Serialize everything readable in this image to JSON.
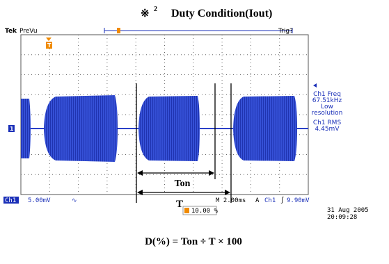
{
  "header": {
    "mark": "※",
    "superscript": "2",
    "title": "Duty Condition(Iout)"
  },
  "scope": {
    "top_bar": {
      "brand": "Tek",
      "mode": "PreVu",
      "trigger_status": "Trig?"
    },
    "side_readout": [
      "Ch1 Freq",
      "67.51kHz",
      "Low",
      "resolution",
      "Ch1 RMS",
      "4.45mV"
    ],
    "bottom_bar": {
      "channel": "Ch1",
      "volts_per_div": "5.00mV",
      "coupling": "∿",
      "timebase": "M 2.00ms",
      "trigger_mode": "A",
      "trigger_channel": "Ch1",
      "trigger_slope": "∫",
      "trigger_level": "9.90mV"
    },
    "trigger_position": "10.00 %",
    "date": "31 Aug 2005",
    "time": "20:09:28",
    "channel_marker": "1",
    "trigger_marker": "T"
  },
  "annotations": {
    "on_time": "Ton",
    "period": "T"
  },
  "formula": "D(%) = Ton ÷ T × 100"
}
